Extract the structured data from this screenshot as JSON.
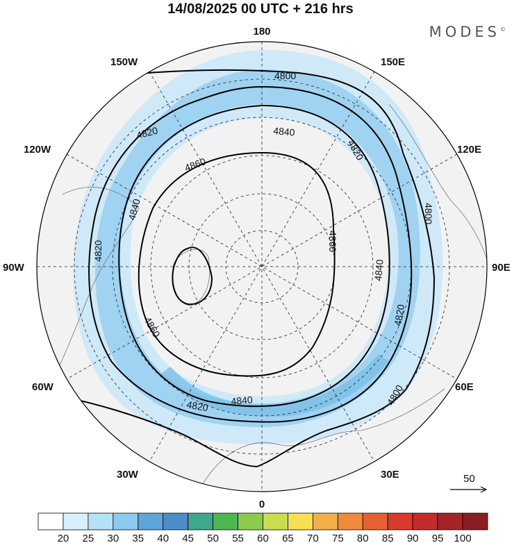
{
  "title": "14/08/2025  00 UTC  + 216 hrs",
  "logo": "MODES",
  "logo_mark": "©",
  "longitude_labels": {
    "lon_180": "180",
    "lon_150E": "150E",
    "lon_120E": "120E",
    "lon_90E": "90E",
    "lon_60E": "60E",
    "lon_30E": "30E",
    "lon_0": "0",
    "lon_30W": "30W",
    "lon_60W": "60W",
    "lon_90W": "90W",
    "lon_120W": "120W",
    "lon_150W": "150W"
  },
  "contour_labels": {
    "c4800_top": "4800",
    "c4800_right": "4800",
    "c4800_br": "4800",
    "c4820_tl": "4820",
    "c4820_left": "4820",
    "c4820_tr": "4820",
    "c4820_right": "4820",
    "c4820_bottom": "4820",
    "c4840_top": "4840",
    "c4840_left": "4840",
    "c4840_right": "4840",
    "c4840_bottom": "4840",
    "c4860_top": "4860",
    "c4860_right": "4860",
    "c4860_left": "4860"
  },
  "vector_reference": {
    "value": "50"
  },
  "colorbar": {
    "labels": [
      "20",
      "25",
      "30",
      "35",
      "40",
      "45",
      "50",
      "55",
      "60",
      "65",
      "70",
      "75",
      "80",
      "85",
      "90",
      "95",
      "100"
    ],
    "colors": [
      "#ffffff",
      "#d7f0fb",
      "#b5e1f6",
      "#8ccbef",
      "#5ea6da",
      "#4a8ec9",
      "#3ea88f",
      "#4cb84d",
      "#8dcb4b",
      "#c9dd4d",
      "#f6e04f",
      "#f3b04a",
      "#ef8b3a",
      "#e85f31",
      "#da3a2e",
      "#c32b2c",
      "#a52428",
      "#8b1e22"
    ]
  }
}
